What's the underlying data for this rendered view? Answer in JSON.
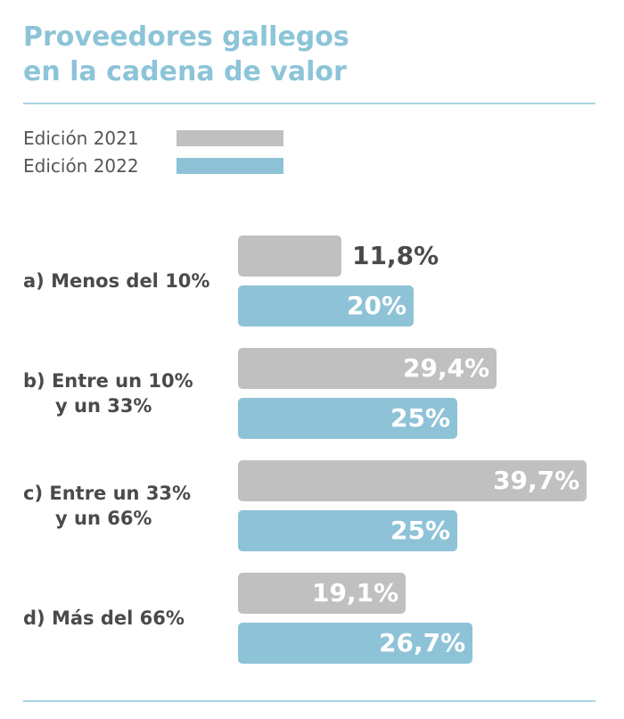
{
  "title_line1": "Proveedores gallegos",
  "title_line2": "en la cadena de valor",
  "colors": {
    "title": "#8cc4d8",
    "bar_2021": "#c0c0c0",
    "bar_2022": "#8ec3d7",
    "label": "#4a4a4a",
    "value_outside": "#4a4a4a",
    "value_inside": "#ffffff"
  },
  "chart_data": {
    "type": "bar",
    "orientation": "horizontal",
    "title": "Proveedores gallegos en la cadena de valor",
    "categories": [
      [
        "a) Menos del 10%"
      ],
      [
        "b) Entre un 10%",
        "y un 33%"
      ],
      [
        "c) Entre un 33%",
        "y un 66%"
      ],
      [
        "d) Más del 66%"
      ]
    ],
    "series": [
      {
        "name": "Edición 2021",
        "values": [
          11.8,
          29.4,
          39.7,
          19.1
        ],
        "labels": [
          "11,8%",
          "29,4%",
          "39,7%",
          "19,1%"
        ]
      },
      {
        "name": "Edición 2022",
        "values": [
          20,
          25,
          25,
          26.7
        ],
        "labels": [
          "20%",
          "25%",
          "25%",
          "26,7%"
        ]
      }
    ],
    "xlim": [
      0,
      40
    ],
    "legend": "top-left",
    "grid": false,
    "unit": "%"
  }
}
